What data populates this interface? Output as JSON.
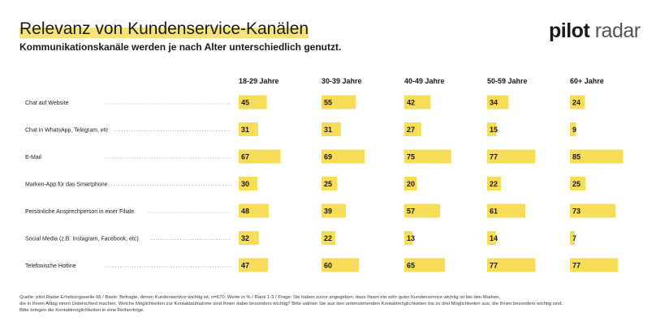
{
  "header": {
    "title": "Relevanz von Kundenservice-Kanälen",
    "subtitle": "Kommunikationskanäle werden je nach Alter unterschiedlich genutzt.",
    "logo_bold": "pilot",
    "logo_light": "radar"
  },
  "colors": {
    "bar": "#f7dd57",
    "highlight": "#f5e27a",
    "dots": "#999999",
    "text": "#1a1a1a"
  },
  "chart_data": {
    "type": "bar",
    "orientation": "horizontal",
    "layout": "small-multiples",
    "title": "Relevanz von Kundenservice-Kanälen",
    "unit": "%",
    "xlim": [
      0,
      100
    ],
    "categories": [
      "Chat auf Website",
      "Chat in WhatsApp, Telegram, etc",
      "E-Mail",
      "Marken-App für das Smartphone",
      "Persönliche Ansprechperson in einer Filiale",
      "Social Media (z.B. Instagram, Facebook, etc)",
      "Telefonische Hotline"
    ],
    "series": [
      {
        "name": "18-29 Jahre",
        "values": [
          45,
          31,
          67,
          30,
          48,
          32,
          47
        ]
      },
      {
        "name": "30-39 Jahre",
        "values": [
          55,
          31,
          69,
          25,
          39,
          22,
          60
        ]
      },
      {
        "name": "40-49 Jahre",
        "values": [
          42,
          27,
          75,
          20,
          57,
          13,
          65
        ]
      },
      {
        "name": "50-59 Jahre",
        "values": [
          34,
          15,
          77,
          22,
          61,
          14,
          77
        ]
      },
      {
        "name": "60+ Jahre",
        "values": [
          24,
          9,
          85,
          25,
          73,
          7,
          77
        ]
      }
    ]
  },
  "footnote": {
    "line1": "Quelle: pilot Radar Erhebungswelle 66 / Basis: Befragte, denen Kundenservice wichtig ist, n=670; Werte in % / Rank 1-3 / Frage: Sie haben zuvor angegeben, dass Ihnen ein sehr guter Kundenservice wichtig ist bei den Marken,",
    "line2": "die in Ihrem Alltag einen Unterschied machen. Welche Möglichkeiten zur Kontaktaufnahme sind Ihnen dabei besonders wichtig? Bitte wählen Sie aus den untenstehenden Kontaktmöglichkeiten bis zu drei Möglichkeiten aus, die Ihnen besonders wichtig sind.",
    "line3": "Bitte bringen die Kontaktmöglichkeiten in eine Reihenfolge."
  }
}
